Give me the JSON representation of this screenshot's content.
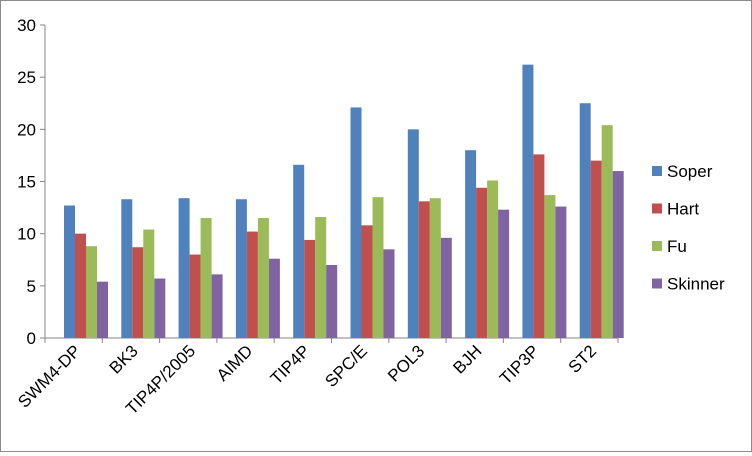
{
  "chart_data": {
    "type": "bar",
    "categories": [
      "SWM4-DP",
      "BK3",
      "TIP4P/2005",
      "AIMD",
      "TIP4P",
      "SPC/E",
      "POL3",
      "BJH",
      "TIP3P",
      "ST2"
    ],
    "series": [
      {
        "name": "Soper",
        "color": "#4f81bd",
        "values": [
          12.7,
          13.3,
          13.4,
          13.3,
          16.6,
          22.1,
          20.0,
          18.0,
          26.2,
          22.5
        ]
      },
      {
        "name": "Hart",
        "color": "#c0504d",
        "values": [
          10.0,
          8.7,
          8.0,
          10.2,
          9.4,
          10.8,
          13.1,
          14.4,
          17.6,
          17.0
        ]
      },
      {
        "name": "Fu",
        "color": "#9bbb59",
        "values": [
          8.8,
          10.4,
          11.5,
          11.5,
          11.6,
          13.5,
          13.4,
          15.1,
          13.7,
          20.4
        ]
      },
      {
        "name": "Skinner",
        "color": "#8064a2",
        "values": [
          5.4,
          5.7,
          6.1,
          7.6,
          7.0,
          8.5,
          9.6,
          12.3,
          12.6,
          16.0
        ]
      }
    ],
    "title": "",
    "xlabel": "",
    "ylabel": "",
    "ylim": [
      0,
      30
    ],
    "yticks": [
      "0",
      "5",
      "10",
      "15",
      "20",
      "25",
      "30"
    ],
    "grid": false,
    "legend_position": "right"
  }
}
